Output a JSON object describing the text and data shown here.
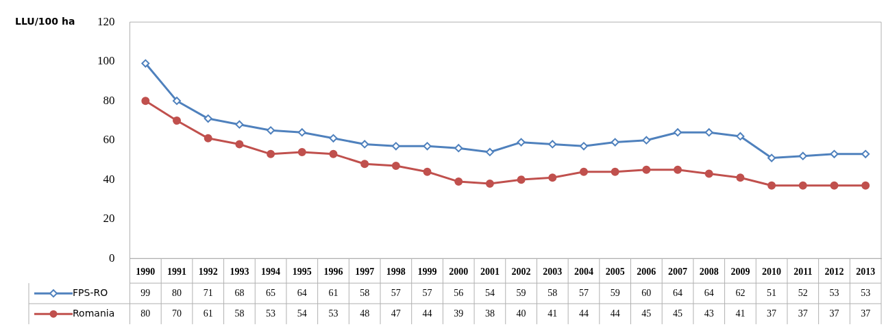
{
  "chart_data": {
    "type": "line",
    "ylabel": "LLU/100 ha",
    "categories": [
      "1990",
      "1991",
      "1992",
      "1993",
      "1994",
      "1995",
      "1996",
      "1997",
      "1998",
      "1999",
      "2000",
      "2001",
      "2002",
      "2003",
      "2004",
      "2005",
      "2006",
      "2007",
      "2008",
      "2009",
      "2010",
      "2011",
      "2012",
      "2013"
    ],
    "series": [
      {
        "name": "FPS-RO",
        "color": "#4f81bd",
        "marker": "diamond",
        "values": [
          99,
          80,
          71,
          68,
          65,
          64,
          61,
          58,
          57,
          57,
          56,
          54,
          59,
          58,
          57,
          59,
          60,
          64,
          64,
          62,
          51,
          52,
          53,
          53
        ]
      },
      {
        "name": "Romania",
        "color": "#c0504d",
        "marker": "circle",
        "values": [
          80,
          70,
          61,
          58,
          53,
          54,
          53,
          48,
          47,
          44,
          39,
          38,
          40,
          41,
          44,
          44,
          45,
          45,
          43,
          41,
          37,
          37,
          37,
          37
        ]
      }
    ],
    "ylim": [
      0,
      120
    ],
    "yticks": [
      0,
      20,
      40,
      60,
      80,
      100,
      120
    ],
    "grid": false,
    "legend": "bottom",
    "data_labels": true,
    "line_style": "solid"
  }
}
